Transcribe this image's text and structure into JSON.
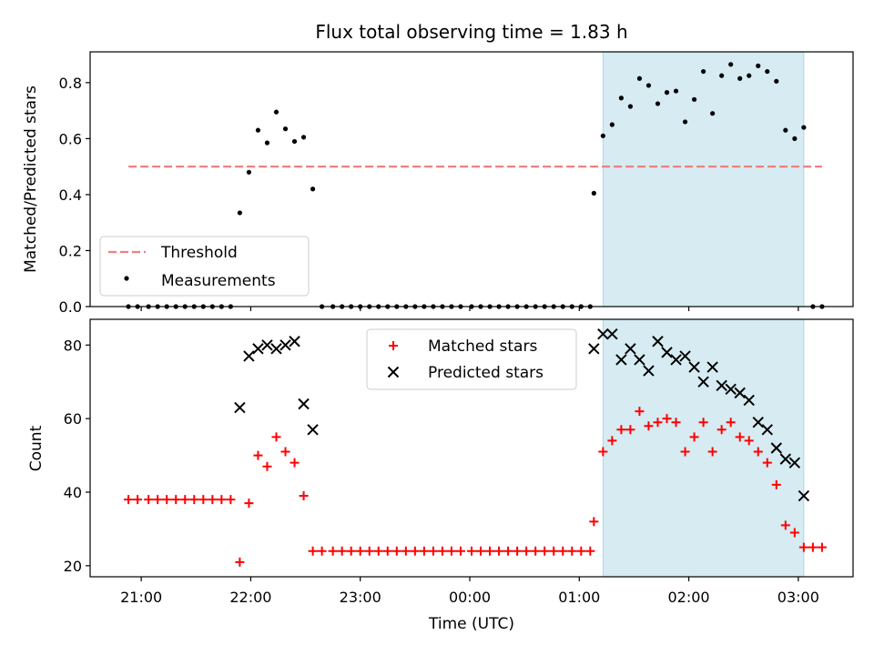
{
  "chart_data": [
    {
      "type": "scatter",
      "title": "Flux total observing time = 1.83 h",
      "ylabel": "Matched/Predicted stars",
      "xlabel": "",
      "xlim": [
        "20:32",
        "03:30"
      ],
      "ylim": [
        0,
        0.91
      ],
      "yticks": [
        0.0,
        0.2,
        0.4,
        0.6,
        0.8
      ],
      "ytick_labels": [
        "0.0",
        "0.2",
        "0.4",
        "0.6",
        "0.8"
      ],
      "highlight": {
        "from": "01:13",
        "to": "03:03",
        "color": "#add8e6"
      },
      "legend_position": "lower-left",
      "threshold": {
        "name": "Threshold",
        "value": 0.5,
        "from": "20:53",
        "to": "03:13",
        "color": "#f08080",
        "style": "dashed"
      },
      "series": [
        {
          "name": "Measurements",
          "marker": "dot",
          "color": "#000000",
          "points": [
            [
              "20:53",
              0
            ],
            [
              "20:58",
              0
            ],
            [
              "21:04",
              0
            ],
            [
              "21:09",
              0
            ],
            [
              "21:14",
              0
            ],
            [
              "21:19",
              0
            ],
            [
              "21:24",
              0
            ],
            [
              "21:29",
              0
            ],
            [
              "21:34",
              0
            ],
            [
              "21:39",
              0
            ],
            [
              "21:44",
              0
            ],
            [
              "21:49",
              0
            ],
            [
              "21:54",
              0.335
            ],
            [
              "21:59",
              0.48
            ],
            [
              "22:04",
              0.63
            ],
            [
              "22:09",
              0.585
            ],
            [
              "22:14",
              0.695
            ],
            [
              "22:19",
              0.635
            ],
            [
              "22:24",
              0.59
            ],
            [
              "22:29",
              0.605
            ],
            [
              "22:34",
              0.42
            ],
            [
              "22:39",
              0
            ],
            [
              "22:45",
              0
            ],
            [
              "22:50",
              0
            ],
            [
              "22:55",
              0
            ],
            [
              "23:00",
              0
            ],
            [
              "23:05",
              0
            ],
            [
              "23:10",
              0
            ],
            [
              "23:15",
              0
            ],
            [
              "23:20",
              0
            ],
            [
              "23:25",
              0
            ],
            [
              "23:30",
              0
            ],
            [
              "23:35",
              0
            ],
            [
              "23:40",
              0
            ],
            [
              "23:45",
              0
            ],
            [
              "23:50",
              0
            ],
            [
              "23:55",
              0
            ],
            [
              "00:01",
              0
            ],
            [
              "00:06",
              0
            ],
            [
              "00:11",
              0
            ],
            [
              "00:16",
              0
            ],
            [
              "00:21",
              0
            ],
            [
              "00:26",
              0
            ],
            [
              "00:31",
              0
            ],
            [
              "00:36",
              0
            ],
            [
              "00:41",
              0
            ],
            [
              "00:46",
              0
            ],
            [
              "00:51",
              0
            ],
            [
              "00:56",
              0
            ],
            [
              "01:01",
              0
            ],
            [
              "01:06",
              0
            ],
            [
              "01:08",
              0.405
            ],
            [
              "01:13",
              0.61
            ],
            [
              "01:18",
              0.65
            ],
            [
              "01:23",
              0.745
            ],
            [
              "01:28",
              0.715
            ],
            [
              "01:33",
              0.815
            ],
            [
              "01:38",
              0.79
            ],
            [
              "01:43",
              0.725
            ],
            [
              "01:48",
              0.765
            ],
            [
              "01:53",
              0.77
            ],
            [
              "01:58",
              0.66
            ],
            [
              "02:03",
              0.74
            ],
            [
              "02:08",
              0.84
            ],
            [
              "02:13",
              0.69
            ],
            [
              "02:18",
              0.825
            ],
            [
              "02:23",
              0.865
            ],
            [
              "02:28",
              0.815
            ],
            [
              "02:33",
              0.825
            ],
            [
              "02:38",
              0.86
            ],
            [
              "02:43",
              0.84
            ],
            [
              "02:48",
              0.805
            ],
            [
              "02:53",
              0.63
            ],
            [
              "02:58",
              0.6
            ],
            [
              "03:03",
              0.64
            ],
            [
              "03:08",
              0
            ],
            [
              "03:13",
              0
            ]
          ]
        }
      ]
    },
    {
      "type": "scatter",
      "title": "",
      "ylabel": "Count",
      "xlabel": "Time (UTC)",
      "xlim": [
        "20:32",
        "03:30"
      ],
      "ylim": [
        17,
        87
      ],
      "yticks": [
        20,
        40,
        60,
        80
      ],
      "ytick_labels": [
        "20",
        "40",
        "60",
        "80"
      ],
      "xticks": [
        "21:00",
        "22:00",
        "23:00",
        "00:00",
        "01:00",
        "02:00",
        "03:00"
      ],
      "highlight": {
        "from": "01:13",
        "to": "03:03",
        "color": "#add8e6"
      },
      "legend_position": "top-center",
      "series": [
        {
          "name": "Matched stars",
          "marker": "plus",
          "color": "#ff0000",
          "points": [
            [
              "20:53",
              38
            ],
            [
              "20:58",
              38
            ],
            [
              "21:04",
              38
            ],
            [
              "21:09",
              38
            ],
            [
              "21:14",
              38
            ],
            [
              "21:19",
              38
            ],
            [
              "21:24",
              38
            ],
            [
              "21:29",
              38
            ],
            [
              "21:34",
              38
            ],
            [
              "21:39",
              38
            ],
            [
              "21:44",
              38
            ],
            [
              "21:49",
              38
            ],
            [
              "21:54",
              21
            ],
            [
              "21:59",
              37
            ],
            [
              "22:04",
              50
            ],
            [
              "22:09",
              47
            ],
            [
              "22:14",
              55
            ],
            [
              "22:19",
              51
            ],
            [
              "22:24",
              48
            ],
            [
              "22:29",
              39
            ],
            [
              "22:34",
              24
            ],
            [
              "22:39",
              24
            ],
            [
              "22:45",
              24
            ],
            [
              "22:50",
              24
            ],
            [
              "22:55",
              24
            ],
            [
              "23:00",
              24
            ],
            [
              "23:05",
              24
            ],
            [
              "23:10",
              24
            ],
            [
              "23:15",
              24
            ],
            [
              "23:20",
              24
            ],
            [
              "23:25",
              24
            ],
            [
              "23:30",
              24
            ],
            [
              "23:35",
              24
            ],
            [
              "23:40",
              24
            ],
            [
              "23:45",
              24
            ],
            [
              "23:50",
              24
            ],
            [
              "23:55",
              24
            ],
            [
              "00:01",
              24
            ],
            [
              "00:06",
              24
            ],
            [
              "00:11",
              24
            ],
            [
              "00:16",
              24
            ],
            [
              "00:21",
              24
            ],
            [
              "00:26",
              24
            ],
            [
              "00:31",
              24
            ],
            [
              "00:36",
              24
            ],
            [
              "00:41",
              24
            ],
            [
              "00:46",
              24
            ],
            [
              "00:51",
              24
            ],
            [
              "00:56",
              24
            ],
            [
              "01:01",
              24
            ],
            [
              "01:06",
              24
            ],
            [
              "01:08",
              32
            ],
            [
              "01:13",
              51
            ],
            [
              "01:18",
              54
            ],
            [
              "01:23",
              57
            ],
            [
              "01:28",
              57
            ],
            [
              "01:33",
              62
            ],
            [
              "01:38",
              58
            ],
            [
              "01:43",
              59
            ],
            [
              "01:48",
              60
            ],
            [
              "01:53",
              59
            ],
            [
              "01:58",
              51
            ],
            [
              "02:03",
              55
            ],
            [
              "02:08",
              59
            ],
            [
              "02:13",
              51
            ],
            [
              "02:18",
              57
            ],
            [
              "02:23",
              59
            ],
            [
              "02:28",
              55
            ],
            [
              "02:33",
              54
            ],
            [
              "02:38",
              51
            ],
            [
              "02:43",
              48
            ],
            [
              "02:48",
              42
            ],
            [
              "02:53",
              31
            ],
            [
              "02:58",
              29
            ],
            [
              "03:03",
              25
            ],
            [
              "03:08",
              25
            ],
            [
              "03:13",
              25
            ]
          ]
        },
        {
          "name": "Predicted stars",
          "marker": "x",
          "color": "#000000",
          "points": [
            [
              "21:54",
              63
            ],
            [
              "21:59",
              77
            ],
            [
              "22:04",
              79
            ],
            [
              "22:09",
              80
            ],
            [
              "22:14",
              79
            ],
            [
              "22:19",
              80
            ],
            [
              "22:24",
              81
            ],
            [
              "22:29",
              64
            ],
            [
              "22:34",
              57
            ],
            [
              "01:08",
              79
            ],
            [
              "01:13",
              83
            ],
            [
              "01:18",
              83
            ],
            [
              "01:23",
              76
            ],
            [
              "01:28",
              79
            ],
            [
              "01:33",
              76
            ],
            [
              "01:38",
              73
            ],
            [
              "01:43",
              81
            ],
            [
              "01:48",
              78
            ],
            [
              "01:53",
              76
            ],
            [
              "01:58",
              77
            ],
            [
              "02:03",
              74
            ],
            [
              "02:08",
              70
            ],
            [
              "02:13",
              74
            ],
            [
              "02:18",
              69
            ],
            [
              "02:23",
              68
            ],
            [
              "02:28",
              67
            ],
            [
              "02:33",
              65
            ],
            [
              "02:38",
              59
            ],
            [
              "02:43",
              57
            ],
            [
              "02:48",
              52
            ],
            [
              "02:53",
              49
            ],
            [
              "02:58",
              48
            ],
            [
              "03:03",
              39
            ]
          ]
        }
      ]
    }
  ]
}
